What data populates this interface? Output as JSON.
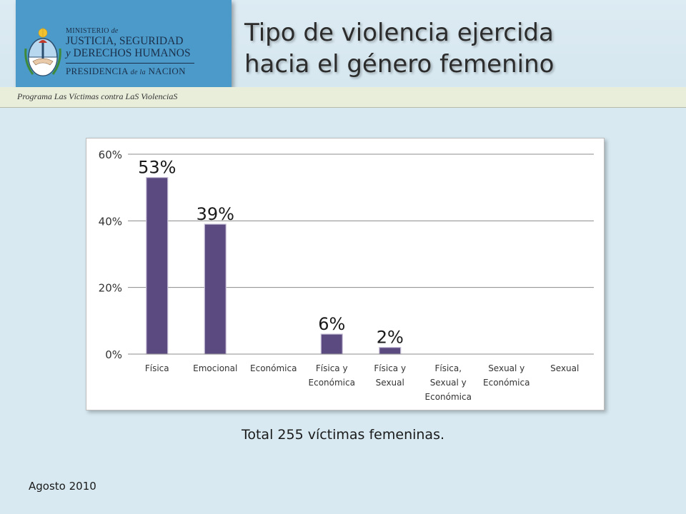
{
  "header": {
    "ministry_line1": "MINISTERIO",
    "ministry_de": "de",
    "ministry_line2": "JUSTICIA, SEGURIDAD",
    "ministry_y": "y",
    "ministry_line3": "DERECHOS HUMANOS",
    "presidencia": "PRESIDENCIA",
    "presidencia_de_la": "de la",
    "nacion": "NACION",
    "title_line1": "Tipo de violencia ejercida",
    "title_line2": "hacia el género femenino",
    "program": "Programa Las Víctimas contra LaS ViolenciaS"
  },
  "colors": {
    "bar": "#5b4a80",
    "logo_block": "#4b9ac9",
    "background": "#d8e9f1"
  },
  "chart_data": {
    "type": "bar",
    "categories": [
      "Física",
      "Emocional",
      "Económica",
      "Física y Económica",
      "Física y Sexual",
      "Física, Sexual y Económica",
      "Sexual y Económica",
      "Sexual"
    ],
    "category_lines": [
      [
        "Física"
      ],
      [
        "Emocional"
      ],
      [
        "Económica"
      ],
      [
        "Física y",
        "Económica"
      ],
      [
        "Física y",
        "Sexual"
      ],
      [
        "Física,",
        "Sexual y",
        "Económica"
      ],
      [
        "Sexual y",
        "Económica"
      ],
      [
        "Sexual"
      ]
    ],
    "values": [
      53,
      39,
      0,
      6,
      2,
      0,
      0,
      0
    ],
    "data_labels": [
      "53%",
      "39%",
      "",
      "6%",
      "2%",
      "",
      "",
      ""
    ],
    "yticks": [
      0,
      20,
      40,
      60
    ],
    "ytick_labels": [
      "0%",
      "20%",
      "40%",
      "60%"
    ],
    "ylim": [
      0,
      60
    ],
    "grid": true,
    "legend": "none"
  },
  "footer": {
    "total": "Total 255 víctimas femeninas.",
    "date": "Agosto 2010"
  }
}
